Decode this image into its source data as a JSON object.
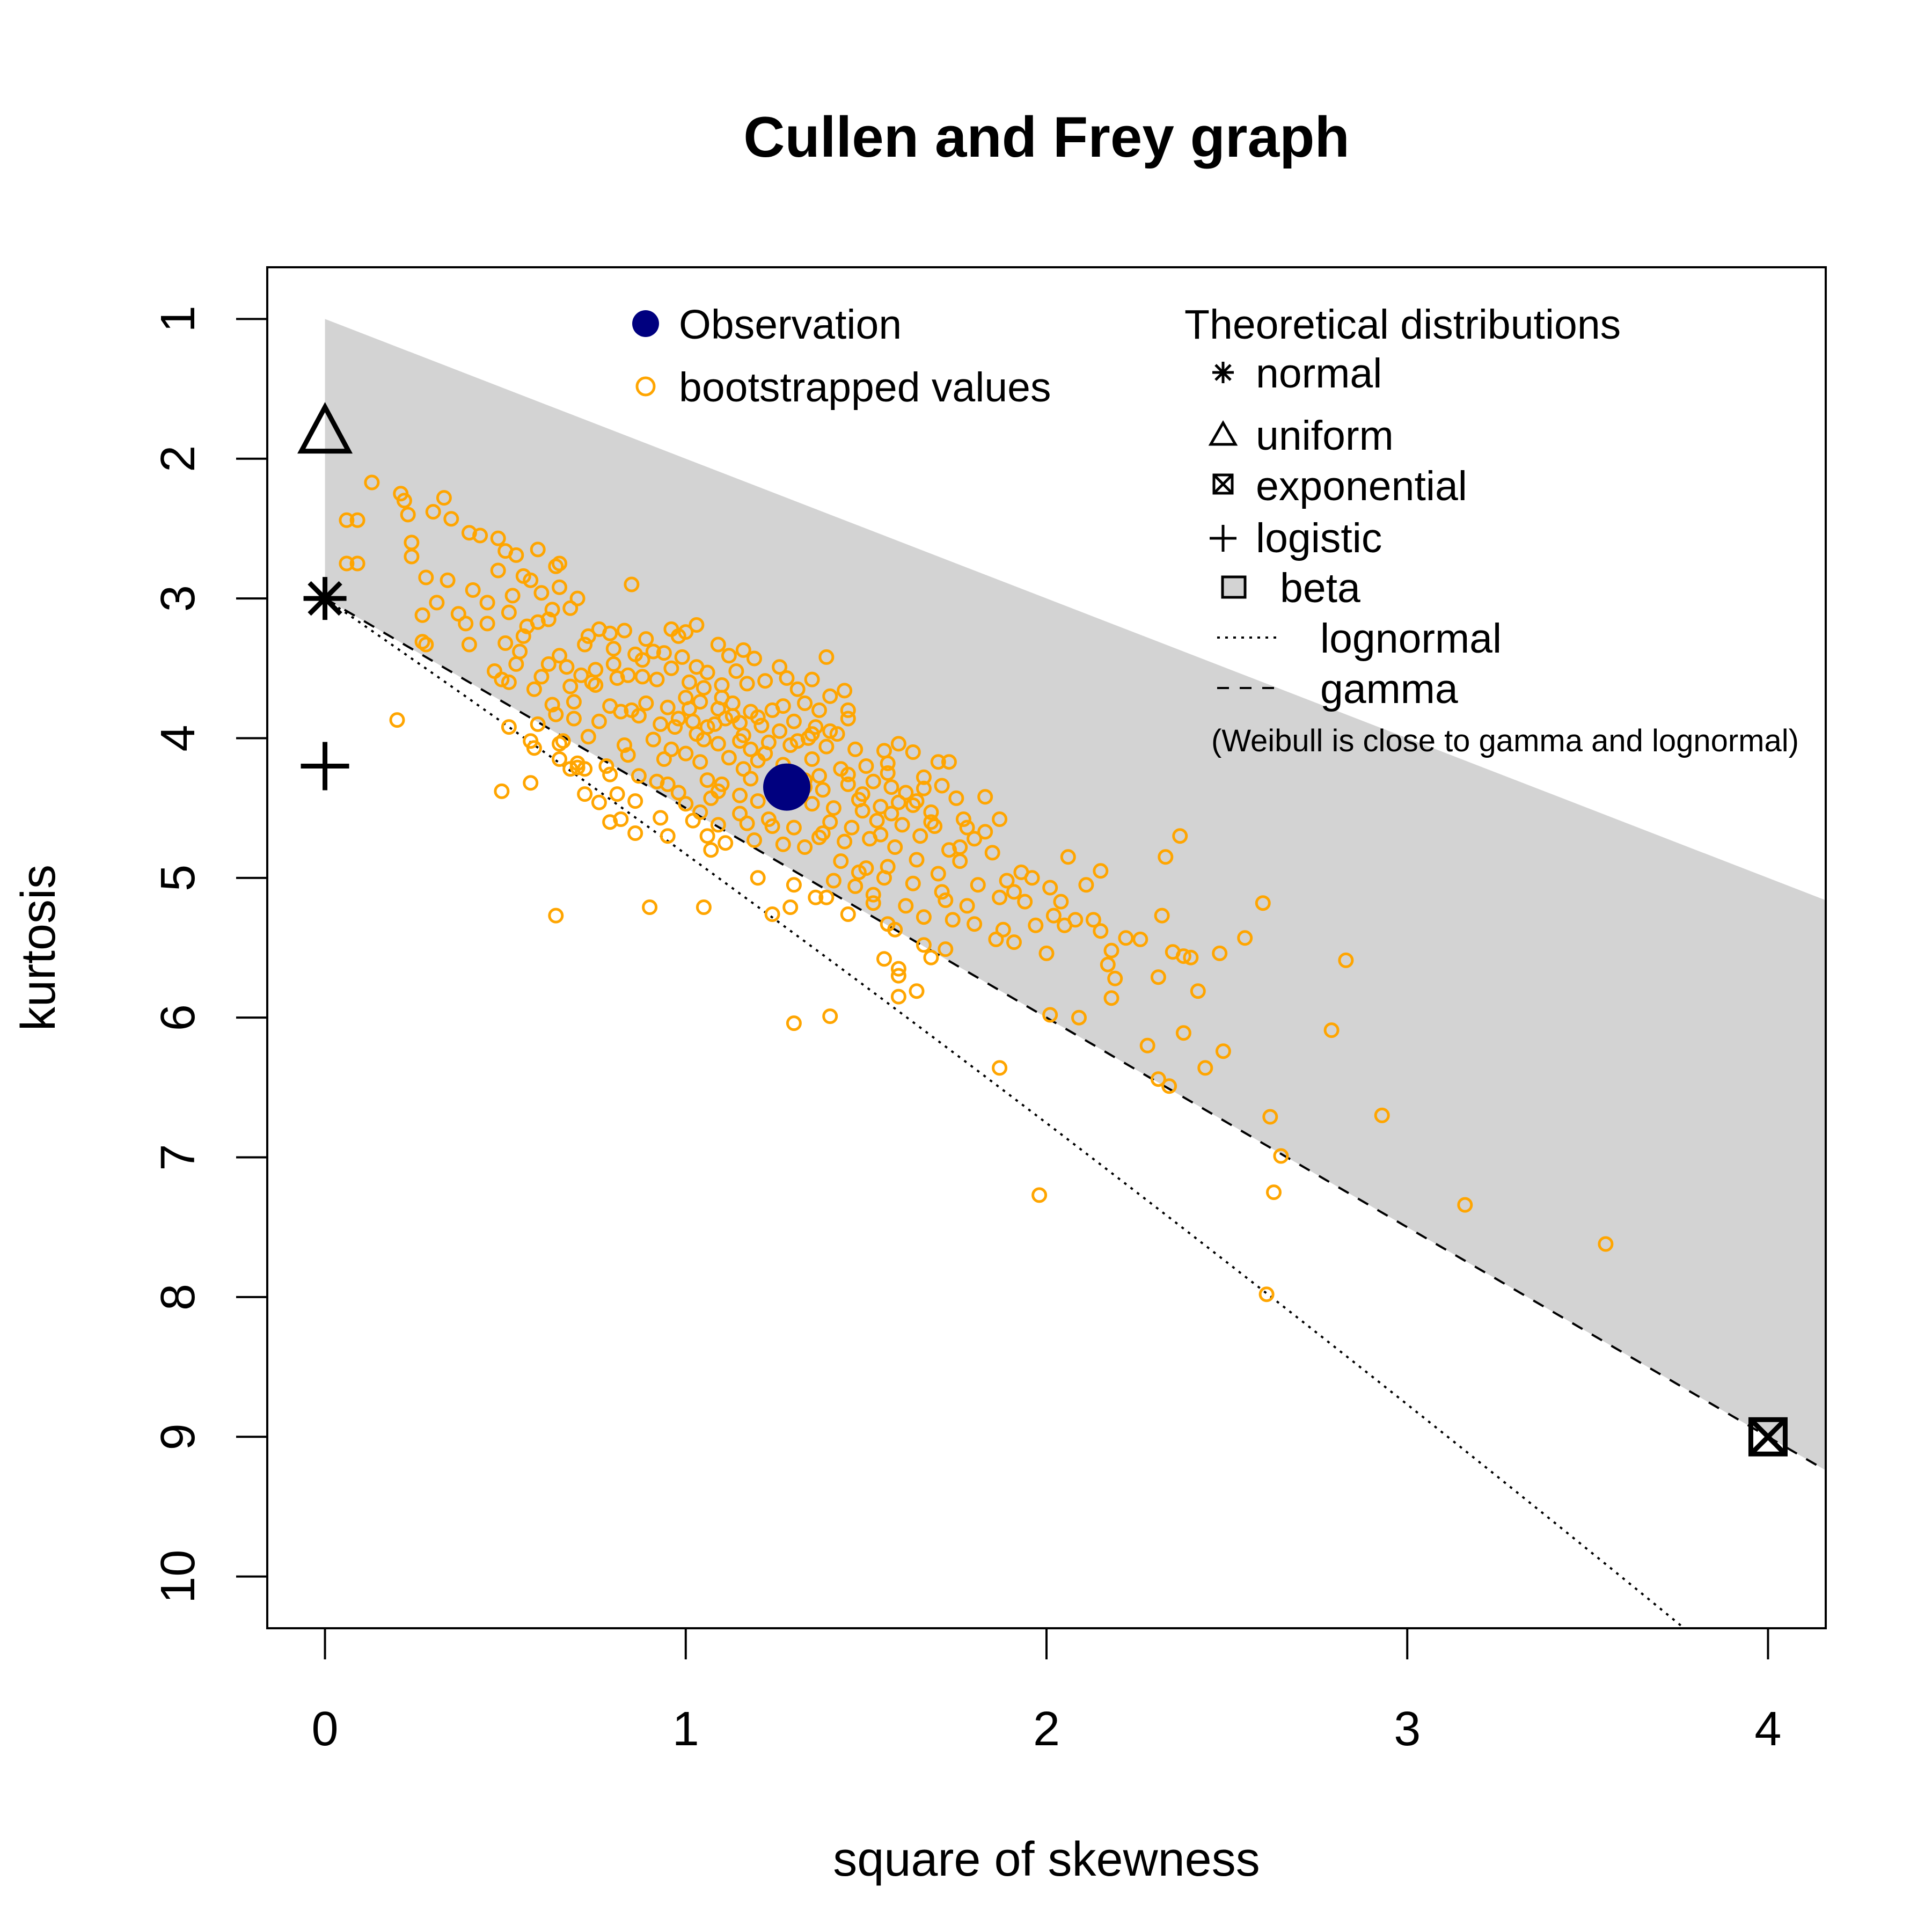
{
  "chart_data": {
    "type": "scatter",
    "title": "Cullen and Frey graph",
    "xlabel": "square of skewness",
    "ylabel": "kurtosis",
    "xlim": [
      -0.16,
      4.16
    ],
    "ylim": [
      10.37,
      0.63
    ],
    "y_axis_reversed": true,
    "xticks": [
      0,
      1,
      2,
      3,
      4
    ],
    "yticks": [
      1,
      2,
      3,
      4,
      5,
      6,
      7,
      8,
      9,
      10
    ],
    "colors": {
      "observation": "#00007f",
      "bootstrap": "#ffa500",
      "beta_region": "#d3d3d3",
      "theoretical": "#000000"
    },
    "observation": {
      "label": "Observation",
      "x": 1.28,
      "y": 4.35
    },
    "bootstrap_label": "bootstrapped values",
    "theoretical_title": "Theoretical distributions",
    "theoretical": [
      {
        "name": "normal",
        "marker": "asterisk",
        "x": 0,
        "y": 3
      },
      {
        "name": "uniform",
        "marker": "triangle",
        "x": 0,
        "y": 1.8
      },
      {
        "name": "exponential",
        "marker": "boxed-x",
        "x": 4,
        "y": 9
      },
      {
        "name": "logistic",
        "marker": "plus",
        "x": 0,
        "y": 4.2
      },
      {
        "name": "beta",
        "marker": "square",
        "region": "shaded area between kurtosis = x + 1 and gamma line"
      },
      {
        "name": "lognormal",
        "line": "dotted"
      },
      {
        "name": "gamma",
        "line": "dashed",
        "formula": "kurtosis = 1.5 * x + 3"
      }
    ],
    "note": "(Weibull is close to gamma and lognormal)",
    "bootstrap_points": [
      [
        0.13,
        2.17
      ],
      [
        0.21,
        2.25
      ],
      [
        0.22,
        2.3
      ],
      [
        0.23,
        2.4
      ],
      [
        0.33,
        2.28
      ],
      [
        0.3,
        2.38
      ],
      [
        0.35,
        2.43
      ],
      [
        0.06,
        2.44
      ],
      [
        0.09,
        2.44
      ],
      [
        0.4,
        2.53
      ],
      [
        0.43,
        2.55
      ],
      [
        0.48,
        2.57
      ],
      [
        0.24,
        2.6
      ],
      [
        0.5,
        2.66
      ],
      [
        0.59,
        2.65
      ],
      [
        0.53,
        2.69
      ],
      [
        0.64,
        2.77
      ],
      [
        0.65,
        2.75
      ],
      [
        0.06,
        2.75
      ],
      [
        0.09,
        2.75
      ],
      [
        0.24,
        2.7
      ],
      [
        0.28,
        2.85
      ],
      [
        0.34,
        2.87
      ],
      [
        0.48,
        2.8
      ],
      [
        0.55,
        2.84
      ],
      [
        0.65,
        2.92
      ],
      [
        0.85,
        2.9
      ],
      [
        0.6,
        2.96
      ],
      [
        0.63,
        3.08
      ],
      [
        0.68,
        3.07
      ],
      [
        0.27,
        3.12
      ],
      [
        0.31,
        3.03
      ],
      [
        0.37,
        3.11
      ],
      [
        0.39,
        3.18
      ],
      [
        0.45,
        3.18
      ],
      [
        0.51,
        3.1
      ],
      [
        0.56,
        3.2
      ],
      [
        0.59,
        3.17
      ],
      [
        0.76,
        3.22
      ],
      [
        0.79,
        3.25
      ],
      [
        0.83,
        3.23
      ],
      [
        0.96,
        3.22
      ],
      [
        0.98,
        3.27
      ],
      [
        1.0,
        3.24
      ],
      [
        1.03,
        3.19
      ],
      [
        0.27,
        3.31
      ],
      [
        0.28,
        3.33
      ],
      [
        0.4,
        3.33
      ],
      [
        0.5,
        3.32
      ],
      [
        0.54,
        3.38
      ],
      [
        0.65,
        3.41
      ],
      [
        0.72,
        3.33
      ],
      [
        0.89,
        3.29
      ],
      [
        0.94,
        3.39
      ],
      [
        0.99,
        3.42
      ],
      [
        1.09,
        3.33
      ],
      [
        1.16,
        3.37
      ],
      [
        0.47,
        3.52
      ],
      [
        0.53,
        3.47
      ],
      [
        0.62,
        3.47
      ],
      [
        0.75,
        3.51
      ],
      [
        0.8,
        3.47
      ],
      [
        0.84,
        3.55
      ],
      [
        0.88,
        3.44
      ],
      [
        0.91,
        3.38
      ],
      [
        0.96,
        3.5
      ],
      [
        1.03,
        3.49
      ],
      [
        1.12,
        3.41
      ],
      [
        1.19,
        3.43
      ],
      [
        1.26,
        3.49
      ],
      [
        1.39,
        3.42
      ],
      [
        0.49,
        3.58
      ],
      [
        0.51,
        3.6
      ],
      [
        0.58,
        3.65
      ],
      [
        0.6,
        3.56
      ],
      [
        0.68,
        3.63
      ],
      [
        0.74,
        3.6
      ],
      [
        0.81,
        3.57
      ],
      [
        0.92,
        3.58
      ],
      [
        1.01,
        3.6
      ],
      [
        1.05,
        3.64
      ],
      [
        1.1,
        3.62
      ],
      [
        1.17,
        3.61
      ],
      [
        1.22,
        3.59
      ],
      [
        1.31,
        3.65
      ],
      [
        1.4,
        3.7
      ],
      [
        1.44,
        3.66
      ],
      [
        0.63,
        3.76
      ],
      [
        0.69,
        3.74
      ],
      [
        0.79,
        3.77
      ],
      [
        0.85,
        3.8
      ],
      [
        0.89,
        3.75
      ],
      [
        0.95,
        3.78
      ],
      [
        1.0,
        3.71
      ],
      [
        1.04,
        3.74
      ],
      [
        1.09,
        3.79
      ],
      [
        1.13,
        3.75
      ],
      [
        1.18,
        3.81
      ],
      [
        1.27,
        3.77
      ],
      [
        1.33,
        3.75
      ],
      [
        1.37,
        3.8
      ],
      [
        1.45,
        3.8
      ],
      [
        0.64,
        3.83
      ],
      [
        0.69,
        3.86
      ],
      [
        0.76,
        3.88
      ],
      [
        0.82,
        3.81
      ],
      [
        0.87,
        3.84
      ],
      [
        0.93,
        3.9
      ],
      [
        0.98,
        3.86
      ],
      [
        1.02,
        3.88
      ],
      [
        1.06,
        3.92
      ],
      [
        1.11,
        3.86
      ],
      [
        1.15,
        3.89
      ],
      [
        1.21,
        3.91
      ],
      [
        1.26,
        3.95
      ],
      [
        1.3,
        3.88
      ],
      [
        1.36,
        3.92
      ],
      [
        1.42,
        3.97
      ],
      [
        0.59,
        3.9
      ],
      [
        0.57,
        4.02
      ],
      [
        0.66,
        4.02
      ],
      [
        0.73,
        3.99
      ],
      [
        0.83,
        4.05
      ],
      [
        0.91,
        4.01
      ],
      [
        0.96,
        4.08
      ],
      [
        1.05,
        4.01
      ],
      [
        1.09,
        4.04
      ],
      [
        1.16,
        3.98
      ],
      [
        1.23,
        4.03
      ],
      [
        1.29,
        4.05
      ],
      [
        1.34,
        4.0
      ],
      [
        1.39,
        4.06
      ],
      [
        1.47,
        4.08
      ],
      [
        1.55,
        4.09
      ],
      [
        1.59,
        4.04
      ],
      [
        1.63,
        4.1
      ],
      [
        0.58,
        4.07
      ],
      [
        0.65,
        4.15
      ],
      [
        0.7,
        4.18
      ],
      [
        0.78,
        4.2
      ],
      [
        0.84,
        4.12
      ],
      [
        0.94,
        4.15
      ],
      [
        1.0,
        4.11
      ],
      [
        1.04,
        4.17
      ],
      [
        1.12,
        4.14
      ],
      [
        1.2,
        4.16
      ],
      [
        1.27,
        4.19
      ],
      [
        1.35,
        4.15
      ],
      [
        1.43,
        4.22
      ],
      [
        1.5,
        4.2
      ],
      [
        1.56,
        4.18
      ],
      [
        1.7,
        4.17
      ],
      [
        1.73,
        4.17
      ],
      [
        0.57,
        4.32
      ],
      [
        0.68,
        4.22
      ],
      [
        0.79,
        4.26
      ],
      [
        0.87,
        4.27
      ],
      [
        0.92,
        4.31
      ],
      [
        1.06,
        4.3
      ],
      [
        1.1,
        4.33
      ],
      [
        1.18,
        4.29
      ],
      [
        1.24,
        4.36
      ],
      [
        1.33,
        4.3
      ],
      [
        1.38,
        4.37
      ],
      [
        1.45,
        4.33
      ],
      [
        1.52,
        4.31
      ],
      [
        1.57,
        4.35
      ],
      [
        1.61,
        4.39
      ],
      [
        1.66,
        4.36
      ],
      [
        1.71,
        4.34
      ],
      [
        0.49,
        4.38
      ],
      [
        0.81,
        4.4
      ],
      [
        0.86,
        4.45
      ],
      [
        1.0,
        4.47
      ],
      [
        1.07,
        4.43
      ],
      [
        1.15,
        4.41
      ],
      [
        1.25,
        4.43
      ],
      [
        1.35,
        4.47
      ],
      [
        1.41,
        4.5
      ],
      [
        1.48,
        4.44
      ],
      [
        1.54,
        4.49
      ],
      [
        1.59,
        4.46
      ],
      [
        1.64,
        4.45
      ],
      [
        1.75,
        4.43
      ],
      [
        1.83,
        4.42
      ],
      [
        0.79,
        4.6
      ],
      [
        0.82,
        4.58
      ],
      [
        0.86,
        4.68
      ],
      [
        0.93,
        4.57
      ],
      [
        1.02,
        4.59
      ],
      [
        1.09,
        4.62
      ],
      [
        1.17,
        4.61
      ],
      [
        1.23,
        4.58
      ],
      [
        1.3,
        4.64
      ],
      [
        1.4,
        4.6
      ],
      [
        1.46,
        4.64
      ],
      [
        1.53,
        4.59
      ],
      [
        1.6,
        4.62
      ],
      [
        1.68,
        4.6
      ],
      [
        1.78,
        4.64
      ],
      [
        1.83,
        4.67
      ],
      [
        1.87,
        4.58
      ],
      [
        0.95,
        4.7
      ],
      [
        1.06,
        4.7
      ],
      [
        1.11,
        4.75
      ],
      [
        1.19,
        4.73
      ],
      [
        1.27,
        4.76
      ],
      [
        1.37,
        4.71
      ],
      [
        1.44,
        4.74
      ],
      [
        1.51,
        4.72
      ],
      [
        1.58,
        4.78
      ],
      [
        1.65,
        4.7
      ],
      [
        1.73,
        4.8
      ],
      [
        1.8,
        4.72
      ],
      [
        1.07,
        4.8
      ],
      [
        1.33,
        4.78
      ],
      [
        1.43,
        4.88
      ],
      [
        1.5,
        4.93
      ],
      [
        1.56,
        4.92
      ],
      [
        1.64,
        4.87
      ],
      [
        1.7,
        4.97
      ],
      [
        1.76,
        4.88
      ],
      [
        1.89,
        5.02
      ],
      [
        1.96,
        5.0
      ],
      [
        2.06,
        4.85
      ],
      [
        2.15,
        4.95
      ],
      [
        2.33,
        4.85
      ],
      [
        2.37,
        4.7
      ],
      [
        1.2,
        5.0
      ],
      [
        1.3,
        5.05
      ],
      [
        1.41,
        5.02
      ],
      [
        1.47,
        5.06
      ],
      [
        1.55,
        5.0
      ],
      [
        1.63,
        5.04
      ],
      [
        1.71,
        5.1
      ],
      [
        1.81,
        5.05
      ],
      [
        1.91,
        5.1
      ],
      [
        2.01,
        5.07
      ],
      [
        2.11,
        5.05
      ],
      [
        0.64,
        5.27
      ],
      [
        0.9,
        5.21
      ],
      [
        1.05,
        5.21
      ],
      [
        1.24,
        5.26
      ],
      [
        1.39,
        5.14
      ],
      [
        1.52,
        5.18
      ],
      [
        1.61,
        5.2
      ],
      [
        1.72,
        5.16
      ],
      [
        1.78,
        5.2
      ],
      [
        1.87,
        5.14
      ],
      [
        1.94,
        5.17
      ],
      [
        2.02,
        5.27
      ],
      [
        2.08,
        5.3
      ],
      [
        2.13,
        5.3
      ],
      [
        2.32,
        5.27
      ],
      [
        2.6,
        5.18
      ],
      [
        1.56,
        5.33
      ],
      [
        1.66,
        5.28
      ],
      [
        1.74,
        5.3
      ],
      [
        1.8,
        5.33
      ],
      [
        1.88,
        5.37
      ],
      [
        1.97,
        5.34
      ],
      [
        2.05,
        5.34
      ],
      [
        2.15,
        5.38
      ],
      [
        2.22,
        5.43
      ],
      [
        1.86,
        5.44
      ],
      [
        1.91,
        5.46
      ],
      [
        2.0,
        5.54
      ],
      [
        2.18,
        5.52
      ],
      [
        2.35,
        5.53
      ],
      [
        2.38,
        5.56
      ],
      [
        2.48,
        5.54
      ],
      [
        2.83,
        5.59
      ],
      [
        1.55,
        5.58
      ],
      [
        1.59,
        5.65
      ],
      [
        1.68,
        5.57
      ],
      [
        1.59,
        5.7
      ],
      [
        2.17,
        5.62
      ],
      [
        2.19,
        5.72
      ],
      [
        2.18,
        5.86
      ],
      [
        2.31,
        5.71
      ],
      [
        2.42,
        5.81
      ],
      [
        1.59,
        5.85
      ],
      [
        1.64,
        5.81
      ],
      [
        1.3,
        6.04
      ],
      [
        1.4,
        5.99
      ],
      [
        2.01,
        5.98
      ],
      [
        2.09,
        6.0
      ],
      [
        2.38,
        6.11
      ],
      [
        2.79,
        6.09
      ],
      [
        2.28,
        6.2
      ],
      [
        2.49,
        6.24
      ],
      [
        2.44,
        6.36
      ],
      [
        1.87,
        6.36
      ],
      [
        2.31,
        6.44
      ],
      [
        2.34,
        6.49
      ],
      [
        2.62,
        6.71
      ],
      [
        2.93,
        6.7
      ],
      [
        2.65,
        6.99
      ],
      [
        2.63,
        7.25
      ],
      [
        1.98,
        7.27
      ],
      [
        3.16,
        7.34
      ],
      [
        3.55,
        7.62
      ],
      [
        2.61,
        7.98
      ],
      [
        0.2,
        3.87
      ],
      [
        0.51,
        3.92
      ],
      [
        0.65,
        4.04
      ],
      [
        0.7,
        4.21
      ],
      [
        0.72,
        4.22
      ],
      [
        1.01,
        3.79
      ],
      [
        1.1,
        3.71
      ],
      [
        1.13,
        3.84
      ],
      [
        1.2,
        3.85
      ],
      [
        1.24,
        3.8
      ],
      [
        1.35,
        3.97
      ],
      [
        1.4,
        3.95
      ],
      [
        1.03,
        3.97
      ],
      [
        0.97,
        3.92
      ],
      [
        1.15,
        4.02
      ],
      [
        1.18,
        4.08
      ],
      [
        1.22,
        4.11
      ],
      [
        1.31,
        4.02
      ],
      [
        1.08,
        3.9
      ],
      [
        0.75,
        3.62
      ],
      [
        0.71,
        3.55
      ],
      [
        0.67,
        3.49
      ],
      [
        0.8,
        3.36
      ],
      [
        0.73,
        3.27
      ],
      [
        0.55,
        3.27
      ],
      [
        0.45,
        3.03
      ],
      [
        0.41,
        2.94
      ],
      [
        0.57,
        2.87
      ],
      [
        0.52,
        2.98
      ],
      [
        0.7,
        3.0
      ],
      [
        0.62,
        3.15
      ],
      [
        0.86,
        3.4
      ],
      [
        0.88,
        3.56
      ],
      [
        1.06,
        3.53
      ],
      [
        1.14,
        3.52
      ],
      [
        1.28,
        3.57
      ],
      [
        1.35,
        3.58
      ],
      [
        1.45,
        3.86
      ],
      [
        1.16,
        4.22
      ],
      [
        1.09,
        4.38
      ],
      [
        1.29,
        4.44
      ],
      [
        1.49,
        4.52
      ],
      [
        1.63,
        4.48
      ],
      [
        1.68,
        4.53
      ],
      [
        1.57,
        4.54
      ],
      [
        1.49,
        4.4
      ],
      [
        1.33,
        4.35
      ],
      [
        1.2,
        4.45
      ],
      [
        1.04,
        4.53
      ],
      [
        0.98,
        4.39
      ],
      [
        0.95,
        4.33
      ],
      [
        0.76,
        4.46
      ],
      [
        0.72,
        4.4
      ],
      [
        1.15,
        4.54
      ],
      [
        1.24,
        4.63
      ],
      [
        1.38,
        4.68
      ],
      [
        1.54,
        4.69
      ],
      [
        1.69,
        4.63
      ],
      [
        1.77,
        4.58
      ],
      [
        1.76,
        4.78
      ],
      [
        1.85,
        4.82
      ],
      [
        1.93,
        4.96
      ],
      [
        2.04,
        5.17
      ],
      [
        2.26,
        5.44
      ],
      [
        2.4,
        5.57
      ],
      [
        2.55,
        5.43
      ],
      [
        1.48,
        4.96
      ],
      [
        1.52,
        5.12
      ],
      [
        1.36,
        5.14
      ],
      [
        1.29,
        5.21
      ],
      [
        1.45,
        5.26
      ],
      [
        1.58,
        5.37
      ],
      [
        1.66,
        5.48
      ],
      [
        1.72,
        5.51
      ],
      [
        1.37,
        4.27
      ],
      [
        1.45,
        4.26
      ],
      [
        1.56,
        4.25
      ],
      [
        1.66,
        4.28
      ]
    ]
  }
}
